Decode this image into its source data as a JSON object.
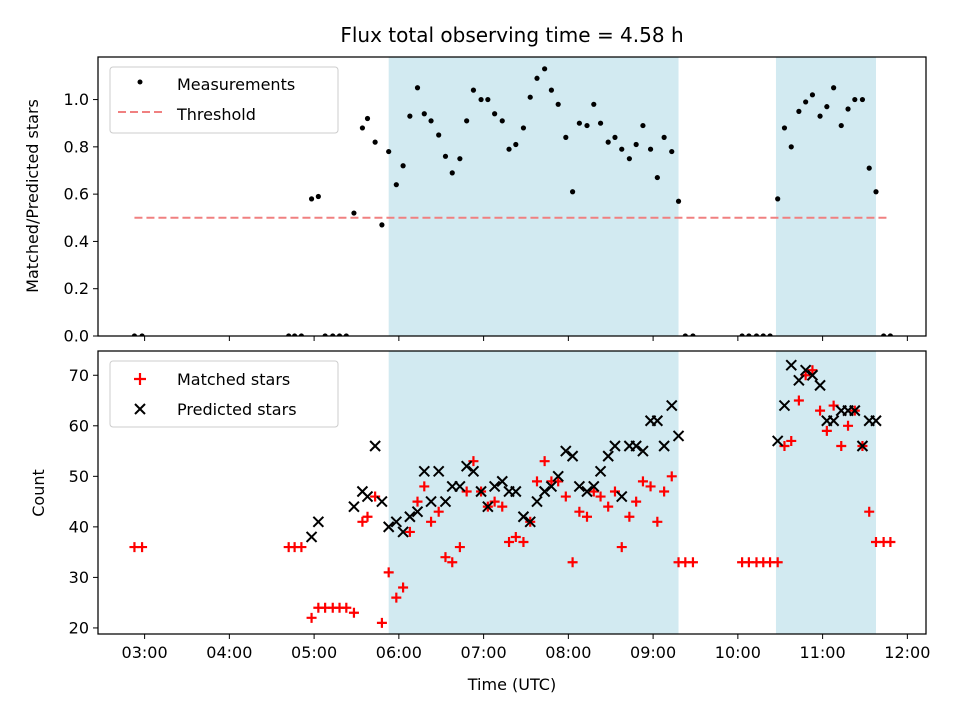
{
  "chart_data": [
    {
      "type": "scatter",
      "title": "Flux total observing time = 4.58 h",
      "xlabel": "",
      "ylabel": "Matched/Predicted stars",
      "ylim": [
        0,
        1.18
      ],
      "yticks": [
        "0.0",
        "0.2",
        "0.4",
        "0.6",
        "0.8",
        "1.0"
      ],
      "xlim_hours": [
        2.45,
        12.22
      ],
      "grid": false,
      "legend_position": "upper-left",
      "shaded_intervals": [
        [
          5.88,
          9.3
        ],
        [
          10.45,
          11.63
        ]
      ],
      "shade_color": "#add8e6",
      "series": [
        {
          "name": "Measurements",
          "marker": "dot",
          "color": "#000000",
          "points": [
            [
              2.88,
              0.0
            ],
            [
              2.97,
              0.0
            ],
            [
              4.7,
              0.0
            ],
            [
              4.77,
              0.0
            ],
            [
              4.85,
              0.0
            ],
            [
              4.97,
              0.58
            ],
            [
              5.05,
              0.59
            ],
            [
              5.13,
              0.0
            ],
            [
              5.22,
              0.0
            ],
            [
              5.3,
              0.0
            ],
            [
              5.38,
              0.0
            ],
            [
              5.47,
              0.52
            ],
            [
              5.57,
              0.88
            ],
            [
              5.63,
              0.92
            ],
            [
              5.72,
              0.82
            ],
            [
              5.8,
              0.47
            ],
            [
              5.88,
              0.78
            ],
            [
              5.97,
              0.64
            ],
            [
              6.05,
              0.72
            ],
            [
              6.13,
              0.93
            ],
            [
              6.22,
              1.05
            ],
            [
              6.3,
              0.94
            ],
            [
              6.38,
              0.91
            ],
            [
              6.47,
              0.85
            ],
            [
              6.55,
              0.76
            ],
            [
              6.63,
              0.69
            ],
            [
              6.72,
              0.75
            ],
            [
              6.8,
              0.91
            ],
            [
              6.88,
              1.04
            ],
            [
              6.97,
              1.0
            ],
            [
              7.05,
              1.0
            ],
            [
              7.13,
              0.94
            ],
            [
              7.22,
              0.91
            ],
            [
              7.3,
              0.79
            ],
            [
              7.38,
              0.81
            ],
            [
              7.47,
              0.88
            ],
            [
              7.55,
              1.01
            ],
            [
              7.63,
              1.09
            ],
            [
              7.72,
              1.13
            ],
            [
              7.8,
              1.04
            ],
            [
              7.88,
              0.98
            ],
            [
              7.97,
              0.84
            ],
            [
              8.05,
              0.61
            ],
            [
              8.13,
              0.9
            ],
            [
              8.22,
              0.89
            ],
            [
              8.3,
              0.98
            ],
            [
              8.38,
              0.9
            ],
            [
              8.47,
              0.82
            ],
            [
              8.55,
              0.84
            ],
            [
              8.63,
              0.79
            ],
            [
              8.72,
              0.75
            ],
            [
              8.8,
              0.81
            ],
            [
              8.88,
              0.89
            ],
            [
              8.97,
              0.79
            ],
            [
              9.05,
              0.67
            ],
            [
              9.13,
              0.84
            ],
            [
              9.22,
              0.78
            ],
            [
              9.3,
              0.57
            ],
            [
              9.38,
              0.0
            ],
            [
              9.47,
              0.0
            ],
            [
              10.05,
              0.0
            ],
            [
              10.13,
              0.0
            ],
            [
              10.22,
              0.0
            ],
            [
              10.3,
              0.0
            ],
            [
              10.38,
              0.0
            ],
            [
              10.47,
              0.58
            ],
            [
              10.55,
              0.88
            ],
            [
              10.63,
              0.8
            ],
            [
              10.72,
              0.95
            ],
            [
              10.8,
              0.99
            ],
            [
              10.88,
              1.02
            ],
            [
              10.97,
              0.93
            ],
            [
              11.05,
              0.97
            ],
            [
              11.13,
              1.05
            ],
            [
              11.22,
              0.89
            ],
            [
              11.3,
              0.96
            ],
            [
              11.38,
              1.0
            ],
            [
              11.47,
              1.0
            ],
            [
              11.55,
              0.71
            ],
            [
              11.63,
              0.61
            ],
            [
              11.72,
              0.0
            ],
            [
              11.8,
              0.0
            ]
          ]
        },
        {
          "name": "Threshold",
          "marker": "dashed-line",
          "color": "#f08080",
          "points": [
            [
              2.88,
              0.5
            ],
            [
              11.8,
              0.5
            ]
          ]
        }
      ]
    },
    {
      "type": "scatter",
      "title": "",
      "xlabel": "Time (UTC)",
      "ylabel": "Count",
      "ylim": [
        18.8,
        74.8
      ],
      "yticks": [
        "20",
        "30",
        "40",
        "50",
        "60",
        "70"
      ],
      "xlim_hours": [
        2.45,
        12.22
      ],
      "xticks": [
        "03:00",
        "04:00",
        "05:00",
        "06:00",
        "07:00",
        "08:00",
        "09:00",
        "10:00",
        "11:00",
        "12:00"
      ],
      "grid": false,
      "legend_position": "upper-left",
      "shaded_intervals": [
        [
          5.88,
          9.3
        ],
        [
          10.45,
          11.63
        ]
      ],
      "shade_color": "#add8e6",
      "series": [
        {
          "name": "Matched stars",
          "marker": "plus",
          "color": "#ff0000",
          "points": [
            [
              2.88,
              36
            ],
            [
              2.97,
              36
            ],
            [
              4.7,
              36
            ],
            [
              4.77,
              36
            ],
            [
              4.85,
              36
            ],
            [
              4.97,
              22
            ],
            [
              5.05,
              24
            ],
            [
              5.13,
              24
            ],
            [
              5.22,
              24
            ],
            [
              5.3,
              24
            ],
            [
              5.38,
              24
            ],
            [
              5.47,
              23
            ],
            [
              5.57,
              41
            ],
            [
              5.63,
              42
            ],
            [
              5.72,
              46
            ],
            [
              5.8,
              21
            ],
            [
              5.88,
              31
            ],
            [
              5.97,
              26
            ],
            [
              6.05,
              28
            ],
            [
              6.13,
              39
            ],
            [
              6.22,
              45
            ],
            [
              6.3,
              48
            ],
            [
              6.38,
              41
            ],
            [
              6.47,
              43
            ],
            [
              6.55,
              34
            ],
            [
              6.63,
              33
            ],
            [
              6.72,
              36
            ],
            [
              6.8,
              47
            ],
            [
              6.88,
              53
            ],
            [
              6.97,
              47
            ],
            [
              7.05,
              44
            ],
            [
              7.13,
              45
            ],
            [
              7.22,
              44
            ],
            [
              7.3,
              37
            ],
            [
              7.38,
              38
            ],
            [
              7.47,
              37
            ],
            [
              7.55,
              41
            ],
            [
              7.63,
              49
            ],
            [
              7.72,
              53
            ],
            [
              7.8,
              49
            ],
            [
              7.88,
              49
            ],
            [
              7.97,
              46
            ],
            [
              8.05,
              33
            ],
            [
              8.13,
              43
            ],
            [
              8.22,
              42
            ],
            [
              8.3,
              47
            ],
            [
              8.38,
              46
            ],
            [
              8.47,
              44
            ],
            [
              8.55,
              47
            ],
            [
              8.63,
              36
            ],
            [
              8.72,
              42
            ],
            [
              8.8,
              45
            ],
            [
              8.88,
              49
            ],
            [
              8.97,
              48
            ],
            [
              9.05,
              41
            ],
            [
              9.13,
              47
            ],
            [
              9.22,
              50
            ],
            [
              9.3,
              33
            ],
            [
              9.38,
              33
            ],
            [
              9.47,
              33
            ],
            [
              10.05,
              33
            ],
            [
              10.13,
              33
            ],
            [
              10.22,
              33
            ],
            [
              10.3,
              33
            ],
            [
              10.38,
              33
            ],
            [
              10.47,
              33
            ],
            [
              10.55,
              56
            ],
            [
              10.63,
              57
            ],
            [
              10.72,
              65
            ],
            [
              10.8,
              70
            ],
            [
              10.88,
              71
            ],
            [
              10.97,
              63
            ],
            [
              11.05,
              59
            ],
            [
              11.13,
              64
            ],
            [
              11.22,
              56
            ],
            [
              11.3,
              60
            ],
            [
              11.38,
              63
            ],
            [
              11.47,
              56
            ],
            [
              11.55,
              43
            ],
            [
              11.63,
              37
            ],
            [
              11.72,
              37
            ],
            [
              11.8,
              37
            ]
          ]
        },
        {
          "name": "Predicted stars",
          "marker": "x",
          "color": "#000000",
          "points": [
            [
              4.97,
              38
            ],
            [
              5.05,
              41
            ],
            [
              5.47,
              44
            ],
            [
              5.57,
              47
            ],
            [
              5.63,
              46
            ],
            [
              5.72,
              56
            ],
            [
              5.8,
              45
            ],
            [
              5.88,
              40
            ],
            [
              5.97,
              41
            ],
            [
              6.05,
              39
            ],
            [
              6.13,
              42
            ],
            [
              6.22,
              43
            ],
            [
              6.3,
              51
            ],
            [
              6.38,
              45
            ],
            [
              6.47,
              51
            ],
            [
              6.55,
              45
            ],
            [
              6.63,
              48
            ],
            [
              6.72,
              48
            ],
            [
              6.8,
              52
            ],
            [
              6.88,
              51
            ],
            [
              6.97,
              47
            ],
            [
              7.05,
              44
            ],
            [
              7.13,
              48
            ],
            [
              7.22,
              49
            ],
            [
              7.3,
              47
            ],
            [
              7.38,
              47
            ],
            [
              7.47,
              42
            ],
            [
              7.55,
              41
            ],
            [
              7.63,
              45
            ],
            [
              7.72,
              47
            ],
            [
              7.8,
              48
            ],
            [
              7.88,
              50
            ],
            [
              7.97,
              55
            ],
            [
              8.05,
              54
            ],
            [
              8.13,
              48
            ],
            [
              8.22,
              47
            ],
            [
              8.3,
              48
            ],
            [
              8.38,
              51
            ],
            [
              8.47,
              54
            ],
            [
              8.55,
              56
            ],
            [
              8.63,
              46
            ],
            [
              8.72,
              56
            ],
            [
              8.8,
              56
            ],
            [
              8.88,
              55
            ],
            [
              8.97,
              61
            ],
            [
              9.05,
              61
            ],
            [
              9.13,
              56
            ],
            [
              9.22,
              64
            ],
            [
              9.3,
              58
            ],
            [
              10.47,
              57
            ],
            [
              10.55,
              64
            ],
            [
              10.63,
              72
            ],
            [
              10.72,
              69
            ],
            [
              10.8,
              71
            ],
            [
              10.88,
              70
            ],
            [
              10.97,
              68
            ],
            [
              11.05,
              61
            ],
            [
              11.13,
              61
            ],
            [
              11.22,
              63
            ],
            [
              11.3,
              63
            ],
            [
              11.38,
              63
            ],
            [
              11.47,
              56
            ],
            [
              11.55,
              61
            ],
            [
              11.63,
              61
            ]
          ]
        }
      ]
    }
  ]
}
